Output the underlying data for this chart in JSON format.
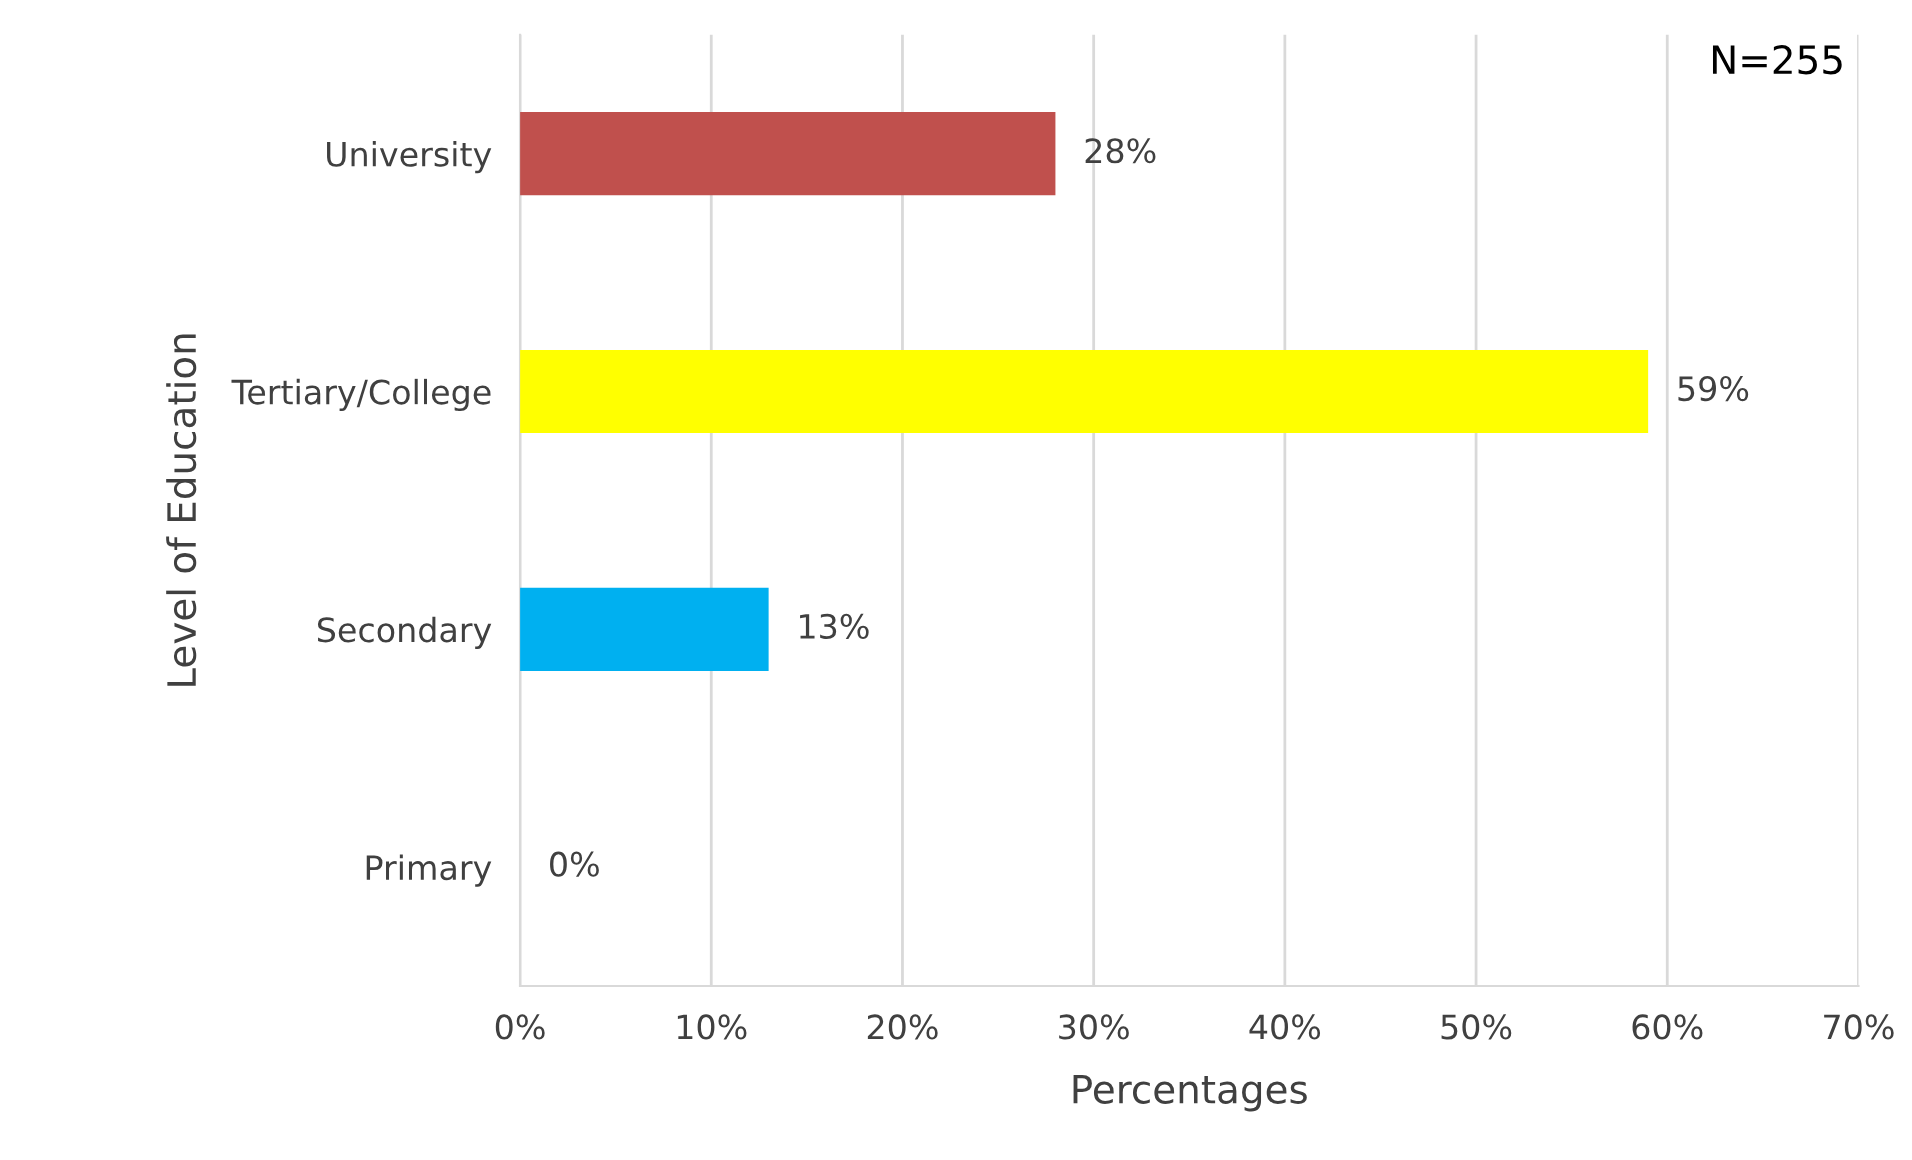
{
  "chart_data": {
    "type": "bar",
    "orientation": "horizontal",
    "xlabel": "Percentages",
    "ylabel": "Level of Education",
    "categories": [
      "University",
      "Tertiary/College",
      "Secondary",
      "Primary"
    ],
    "values": [
      28,
      59,
      13,
      0
    ],
    "colors": [
      "#c0504d",
      "#ffff00",
      "#00b0f0",
      "#4f81bd"
    ],
    "value_labels": [
      "28%",
      "59%",
      "13%",
      "0%"
    ],
    "xlim": [
      0,
      70
    ],
    "xticks": [
      {
        "value": 0,
        "label": "0%"
      },
      {
        "value": 10,
        "label": "10%"
      },
      {
        "value": 20,
        "label": "20%"
      },
      {
        "value": 30,
        "label": "30%"
      },
      {
        "value": 40,
        "label": "40%"
      },
      {
        "value": 50,
        "label": "50%"
      },
      {
        "value": 60,
        "label": "60%"
      },
      {
        "value": 70,
        "label": "70%"
      }
    ],
    "grid": "x",
    "legend": false,
    "annotations": [
      "N=255"
    ]
  }
}
